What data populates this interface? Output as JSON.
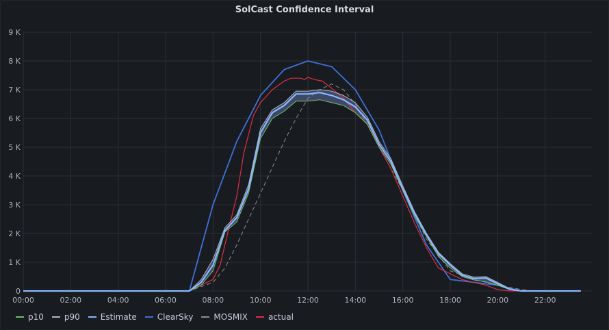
{
  "panel": {
    "title": "SolCast Confidence Interval"
  },
  "colors": {
    "p10": "#73bf69",
    "p90": "#b4b6bd",
    "estimate": "#8ab8ff",
    "clearsky": "#3d71d9",
    "mosmix": "#8e8e8e",
    "actual": "#e02f44",
    "band": "#4a5a80",
    "grid": "#2c2f36",
    "axis_text": "#b3b5bd"
  },
  "chart_data": {
    "type": "line",
    "title": "SolCast Confidence Interval",
    "xlabel": "",
    "ylabel": "",
    "x_unit": "hour",
    "xlim": [
      0,
      24
    ],
    "ylim": [
      0,
      9000
    ],
    "grid": true,
    "legend_position": "bottom-left",
    "x_ticks": [
      "00:00",
      "02:00",
      "04:00",
      "06:00",
      "08:00",
      "10:00",
      "12:00",
      "14:00",
      "16:00",
      "18:00",
      "20:00",
      "22:00"
    ],
    "y_ticks": [
      "0",
      "1 K",
      "2 K",
      "3 K",
      "4 K",
      "5 K",
      "6 K",
      "7 K",
      "8 K",
      "9 K"
    ],
    "legend": [
      "p10",
      "p90",
      "Estimate",
      "ClearSky",
      "MOSMIX",
      "actual"
    ],
    "series": [
      {
        "name": "p10",
        "key": "p10",
        "x": [
          0,
          7,
          7.5,
          8,
          8.5,
          9,
          9.5,
          10,
          10.5,
          11,
          11.5,
          12,
          12.5,
          13,
          13.5,
          14,
          14.5,
          15,
          15.5,
          16,
          16.5,
          17,
          17.5,
          18,
          18.5,
          19,
          19.5,
          20,
          20.5,
          21,
          23.5
        ],
        "y": [
          0,
          0,
          200,
          700,
          2050,
          2400,
          3400,
          5300,
          6000,
          6250,
          6600,
          6600,
          6650,
          6550,
          6450,
          6200,
          5800,
          5000,
          4400,
          3500,
          2600,
          1900,
          1200,
          800,
          500,
          380,
          320,
          200,
          50,
          0,
          0
        ]
      },
      {
        "name": "p90",
        "key": "p90",
        "x": [
          0,
          7,
          7.5,
          8,
          8.5,
          9,
          9.5,
          10,
          10.5,
          11,
          11.5,
          12,
          12.5,
          13,
          13.5,
          14,
          14.5,
          15,
          15.5,
          16,
          16.5,
          17,
          17.5,
          18,
          18.5,
          19,
          19.5,
          20,
          20.5,
          21,
          23.5
        ],
        "y": [
          0,
          0,
          400,
          1100,
          2200,
          2650,
          3700,
          5650,
          6300,
          6550,
          6950,
          6950,
          7000,
          6950,
          6800,
          6550,
          6050,
          5200,
          4600,
          3650,
          2750,
          2000,
          1350,
          950,
          600,
          480,
          500,
          300,
          80,
          0,
          0
        ]
      },
      {
        "name": "Estimate",
        "key": "estimate",
        "x": [
          0,
          7,
          7.5,
          8,
          8.5,
          9,
          9.5,
          10,
          10.5,
          11,
          11.5,
          12,
          12.5,
          13,
          13.5,
          14,
          14.5,
          15,
          15.5,
          16,
          16.5,
          17,
          17.5,
          18,
          18.5,
          19,
          19.5,
          20,
          20.5,
          21,
          23.5
        ],
        "y": [
          0,
          0,
          300,
          900,
          2100,
          2550,
          3550,
          5500,
          6200,
          6450,
          6850,
          6850,
          6900,
          6800,
          6650,
          6400,
          5950,
          5100,
          4500,
          3550,
          2700,
          1950,
          1300,
          900,
          550,
          430,
          450,
          250,
          60,
          0,
          0
        ]
      },
      {
        "name": "ClearSky",
        "key": "clearsky",
        "x": [
          0,
          7,
          8,
          9,
          10,
          11,
          12,
          13,
          14,
          15,
          16,
          17,
          18,
          19,
          20,
          21,
          23.5
        ],
        "y": [
          0,
          0,
          3000,
          5200,
          6800,
          7700,
          8000,
          7800,
          7000,
          5600,
          3500,
          1600,
          400,
          300,
          200,
          0,
          0
        ]
      },
      {
        "name": "MOSMIX",
        "key": "mosmix",
        "x": [
          0,
          7,
          8,
          8.5,
          9,
          9.5,
          10,
          10.5,
          11,
          11.5,
          12,
          12.5,
          13,
          13.5,
          14,
          14.5,
          15,
          16,
          17,
          18,
          19,
          20,
          21,
          21.5,
          23.5
        ],
        "y": [
          0,
          0,
          300,
          800,
          1600,
          2500,
          3400,
          4300,
          5200,
          6000,
          6700,
          7000,
          7200,
          7000,
          6500,
          5800,
          5000,
          3500,
          1800,
          700,
          400,
          200,
          50,
          0,
          0
        ]
      },
      {
        "name": "actual",
        "key": "actual",
        "x": [
          0,
          7,
          7.5,
          8,
          8.3,
          8.7,
          9,
          9.3,
          9.7,
          10,
          10.5,
          11,
          11.3,
          11.7,
          11.85,
          12,
          12.3,
          12.6,
          13,
          13.5,
          14,
          14.5,
          15,
          15.5,
          16,
          16.5,
          17,
          17.5,
          18,
          18.5,
          19,
          19.5,
          20,
          20.5,
          21,
          23.5
        ],
        "y": [
          0,
          0,
          200,
          400,
          900,
          2300,
          3300,
          4800,
          6100,
          6550,
          7000,
          7300,
          7400,
          7400,
          7350,
          7430,
          7350,
          7300,
          7050,
          6700,
          6200,
          5800,
          5000,
          4250,
          3300,
          2350,
          1500,
          800,
          600,
          400,
          300,
          200,
          50,
          0,
          0,
          0
        ]
      }
    ]
  }
}
